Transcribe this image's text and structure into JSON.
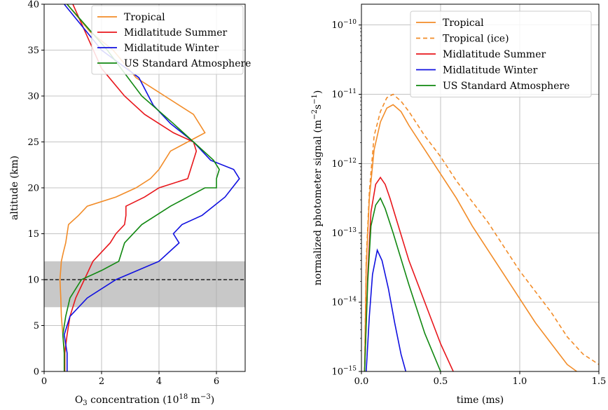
{
  "chart_data": [
    {
      "type": "line",
      "xlabel_base": "O",
      "xlabel_sub": "3",
      "xlabel_rest": " concentration (10",
      "xlabel_sup": "18",
      "xlabel_unit": " m",
      "xlabel_unit_sup": "−3",
      "xlabel_close": ")",
      "ylabel": "altitude (km)",
      "xlim": [
        0,
        7
      ],
      "ylim": [
        0,
        40
      ],
      "xticks": [
        "0",
        "2",
        "4",
        "6"
      ],
      "xtick_values": [
        0,
        2,
        4,
        6
      ],
      "yticks": [
        "0",
        "5",
        "10",
        "15",
        "20",
        "25",
        "30",
        "35",
        "40"
      ],
      "ytick_values": [
        0,
        5,
        10,
        15,
        20,
        25,
        30,
        35,
        40
      ],
      "grid": true,
      "legend_position": "top-right",
      "shaded_band": [
        7,
        12
      ],
      "hline": 10,
      "series": [
        {
          "name": "Tropical",
          "color": "#f28c28",
          "dash": "",
          "x": [
            0.72,
            0.72,
            0.65,
            0.6,
            0.58,
            0.55,
            0.6,
            0.67,
            0.75,
            0.8,
            0.85,
            1.2,
            1.5,
            2.5,
            3.2,
            3.7,
            4.0,
            4.2,
            4.4,
            5.0,
            5.6,
            5.2,
            4.2,
            3.2,
            2.4,
            1.6,
            0.8
          ],
          "y": [
            0,
            2,
            4,
            6,
            8,
            10,
            12,
            13,
            14,
            15,
            16,
            17,
            18,
            19,
            20,
            21,
            22,
            23,
            24,
            25,
            26,
            28,
            30,
            32,
            35,
            37,
            40
          ]
        },
        {
          "name": "Midlatitude Summer",
          "color": "#e8161b",
          "dash": "",
          "x": [
            0.72,
            0.72,
            0.8,
            0.9,
            1.1,
            1.4,
            1.7,
            2.0,
            2.3,
            2.5,
            2.8,
            2.85,
            2.85,
            3.5,
            4.0,
            5.0,
            5.1,
            5.2,
            5.3,
            5.2,
            4.5,
            3.5,
            2.8,
            2.0,
            1.0
          ],
          "y": [
            0,
            2,
            4,
            6,
            8,
            10,
            12,
            13,
            14,
            15,
            16,
            17,
            18,
            19,
            20,
            21,
            22,
            23,
            24,
            25,
            26,
            28,
            30,
            33,
            40
          ]
        },
        {
          "name": "Midlatitude Winter",
          "color": "#1010e0",
          "dash": "",
          "x": [
            0.8,
            0.8,
            0.7,
            0.9,
            1.5,
            2.5,
            4.0,
            4.7,
            4.5,
            4.8,
            5.5,
            6.3,
            6.8,
            6.6,
            5.8,
            5.2,
            4.4,
            3.8,
            3.3,
            2.0,
            0.7
          ],
          "y": [
            0,
            2,
            4,
            6,
            8,
            10,
            12,
            14,
            15,
            16,
            17,
            19,
            21,
            22,
            23,
            25,
            27,
            29,
            32,
            35,
            40
          ]
        },
        {
          "name": "US Standard Atmosphere",
          "color": "#118811",
          "dash": "",
          "x": [
            0.7,
            0.7,
            0.65,
            0.75,
            0.9,
            1.3,
            2.0,
            2.6,
            2.8,
            3.4,
            4.4,
            5.0,
            5.6,
            6.0,
            6.0,
            6.1,
            5.9,
            5.2,
            4.5,
            3.4,
            2.2,
            0.8
          ],
          "y": [
            0,
            2,
            4,
            6,
            8,
            10,
            11,
            12,
            14,
            16,
            18,
            19,
            20,
            20,
            21,
            22,
            23,
            25,
            27,
            30,
            35,
            40
          ]
        }
      ]
    },
    {
      "type": "line",
      "xlabel": "time (ms)",
      "ylabel_main": "normalized photometer signal (m",
      "ylabel_sup1": "−2",
      "ylabel_mid": "s",
      "ylabel_sup2": "−1",
      "ylabel_close": ")",
      "xlim": [
        0,
        1.5
      ],
      "y_scale": "log",
      "ylim_exponent": [
        -15,
        -9.7
      ],
      "xticks": [
        "0.0",
        "0.5",
        "1.0",
        "1.5"
      ],
      "xtick_values": [
        0,
        0.5,
        1.0,
        1.5
      ],
      "ytick_base": "10",
      "ytick_exponents": [
        "−15",
        "−14",
        "−13",
        "−12",
        "−11",
        "−10"
      ],
      "ytick_values": [
        -15,
        -14,
        -13,
        -12,
        -11,
        -10
      ],
      "grid": true,
      "legend_position": "top-right",
      "series": [
        {
          "name": "Tropical",
          "color": "#f28c28",
          "dash": "",
          "x": [
            0.02,
            0.03,
            0.05,
            0.08,
            0.12,
            0.16,
            0.2,
            0.25,
            0.3,
            0.4,
            0.5,
            0.6,
            0.7,
            0.8,
            0.9,
            1.0,
            1.1,
            1.2,
            1.3,
            1.36
          ],
          "y_exp": [
            -15,
            -13.5,
            -12.5,
            -11.8,
            -11.4,
            -11.2,
            -11.15,
            -11.25,
            -11.45,
            -11.8,
            -12.15,
            -12.5,
            -12.9,
            -13.25,
            -13.6,
            -13.95,
            -14.3,
            -14.6,
            -14.9,
            -15
          ]
        },
        {
          "name": "Tropical (ice)",
          "color": "#f28c28",
          "dash": "6,4",
          "x": [
            0.02,
            0.03,
            0.05,
            0.08,
            0.12,
            0.16,
            0.2,
            0.25,
            0.3,
            0.4,
            0.5,
            0.6,
            0.7,
            0.8,
            0.9,
            1.0,
            1.1,
            1.2,
            1.3,
            1.4,
            1.5
          ],
          "y_exp": [
            -15,
            -13.4,
            -12.4,
            -11.6,
            -11.25,
            -11.05,
            -11.0,
            -11.1,
            -11.25,
            -11.6,
            -11.9,
            -12.25,
            -12.55,
            -12.85,
            -13.2,
            -13.55,
            -13.85,
            -14.15,
            -14.5,
            -14.75,
            -14.9
          ]
        },
        {
          "name": "Midlatitude Summer",
          "color": "#e8161b",
          "dash": "",
          "x": [
            0.02,
            0.04,
            0.06,
            0.09,
            0.12,
            0.15,
            0.18,
            0.22,
            0.3,
            0.4,
            0.5,
            0.58
          ],
          "y_exp": [
            -15,
            -13.6,
            -12.7,
            -12.3,
            -12.2,
            -12.3,
            -12.5,
            -12.8,
            -13.4,
            -14.0,
            -14.6,
            -15
          ]
        },
        {
          "name": "Midlatitude Winter",
          "color": "#1010e0",
          "dash": "",
          "x": [
            0.03,
            0.05,
            0.07,
            0.1,
            0.13,
            0.17,
            0.21,
            0.25,
            0.28
          ],
          "y_exp": [
            -15,
            -14.2,
            -13.6,
            -13.25,
            -13.4,
            -13.8,
            -14.3,
            -14.75,
            -15
          ]
        },
        {
          "name": "US Standard Atmosphere",
          "color": "#118811",
          "dash": "",
          "x": [
            0.02,
            0.04,
            0.06,
            0.09,
            0.12,
            0.15,
            0.2,
            0.3,
            0.4,
            0.5
          ],
          "y_exp": [
            -15,
            -13.7,
            -12.9,
            -12.6,
            -12.5,
            -12.65,
            -13.0,
            -13.75,
            -14.45,
            -15
          ]
        }
      ]
    }
  ]
}
